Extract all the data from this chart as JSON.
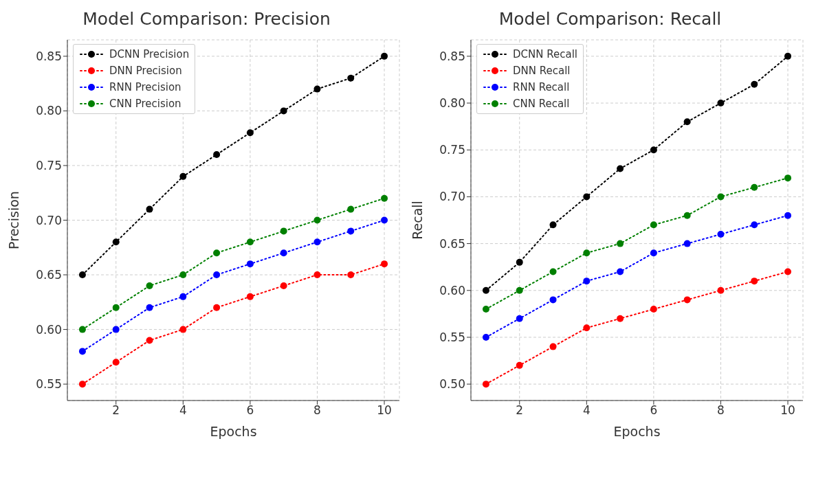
{
  "chart_data": [
    {
      "type": "line",
      "title": "Model Comparison: Precision",
      "xlabel": "Epochs",
      "ylabel": "Precision",
      "x": [
        1,
        2,
        3,
        4,
        5,
        6,
        7,
        8,
        9,
        10
      ],
      "xlim": [
        0.55,
        10.45
      ],
      "xticks": [
        2,
        4,
        6,
        8,
        10
      ],
      "ylim": [
        0.535,
        0.865
      ],
      "yticks": [
        {
          "value": 0.55,
          "label": "0.55"
        },
        {
          "value": 0.6,
          "label": "0.60"
        },
        {
          "value": 0.65,
          "label": "0.65"
        },
        {
          "value": 0.7,
          "label": "0.70"
        },
        {
          "value": 0.75,
          "label": "0.75"
        },
        {
          "value": 0.8,
          "label": "0.80"
        },
        {
          "value": 0.85,
          "label": "0.85"
        }
      ],
      "grid": true,
      "legend": "top left",
      "marker": "circle",
      "line_style": "dotted",
      "series": [
        {
          "name": "DCNN Precision",
          "color": "#000000",
          "values": [
            0.65,
            0.68,
            0.71,
            0.74,
            0.76,
            0.78,
            0.8,
            0.82,
            0.83,
            0.85
          ]
        },
        {
          "name": "DNN Precision",
          "color": "#ff0000",
          "values": [
            0.55,
            0.57,
            0.59,
            0.6,
            0.62,
            0.63,
            0.64,
            0.65,
            0.65,
            0.66
          ]
        },
        {
          "name": "RNN Precision",
          "color": "#0000ff",
          "values": [
            0.58,
            0.6,
            0.62,
            0.63,
            0.65,
            0.66,
            0.67,
            0.68,
            0.69,
            0.7
          ]
        },
        {
          "name": "CNN Precision",
          "color": "#008000",
          "values": [
            0.6,
            0.62,
            0.64,
            0.65,
            0.67,
            0.68,
            0.69,
            0.7,
            0.71,
            0.72
          ]
        }
      ]
    },
    {
      "type": "line",
      "title": "Model Comparison: Recall",
      "xlabel": "Epochs",
      "ylabel": "Recall",
      "x": [
        1,
        2,
        3,
        4,
        5,
        6,
        7,
        8,
        9,
        10
      ],
      "xlim": [
        0.55,
        10.45
      ],
      "xticks": [
        2,
        4,
        6,
        8,
        10
      ],
      "ylim": [
        0.4825,
        0.8675
      ],
      "yticks": [
        {
          "value": 0.5,
          "label": "0.50"
        },
        {
          "value": 0.55,
          "label": "0.55"
        },
        {
          "value": 0.6,
          "label": "0.60"
        },
        {
          "value": 0.65,
          "label": "0.65"
        },
        {
          "value": 0.7,
          "label": "0.70"
        },
        {
          "value": 0.75,
          "label": "0.75"
        },
        {
          "value": 0.8,
          "label": "0.80"
        },
        {
          "value": 0.85,
          "label": "0.85"
        }
      ],
      "grid": true,
      "legend": "top left",
      "marker": "circle",
      "line_style": "dotted",
      "series": [
        {
          "name": "DCNN Recall",
          "color": "#000000",
          "values": [
            0.6,
            0.63,
            0.67,
            0.7,
            0.73,
            0.75,
            0.78,
            0.8,
            0.82,
            0.85
          ]
        },
        {
          "name": "DNN Recall",
          "color": "#ff0000",
          "values": [
            0.5,
            0.52,
            0.54,
            0.56,
            0.57,
            0.58,
            0.59,
            0.6,
            0.61,
            0.62
          ]
        },
        {
          "name": "RNN Recall",
          "color": "#0000ff",
          "values": [
            0.55,
            0.57,
            0.59,
            0.61,
            0.62,
            0.64,
            0.65,
            0.66,
            0.67,
            0.68
          ]
        },
        {
          "name": "CNN Recall",
          "color": "#008000",
          "values": [
            0.58,
            0.6,
            0.62,
            0.64,
            0.65,
            0.67,
            0.68,
            0.7,
            0.71,
            0.72
          ]
        }
      ]
    }
  ]
}
